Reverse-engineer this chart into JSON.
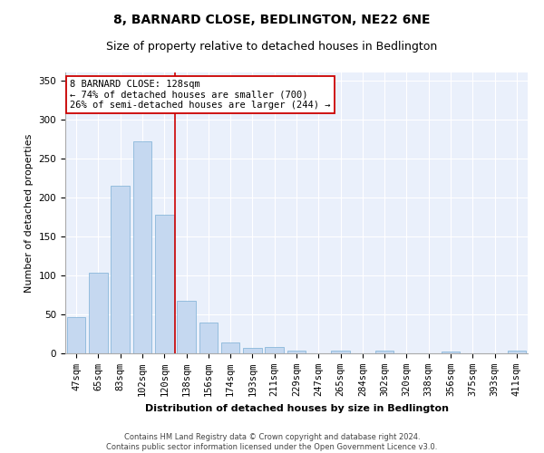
{
  "title": "8, BARNARD CLOSE, BEDLINGTON, NE22 6NE",
  "subtitle": "Size of property relative to detached houses in Bedlington",
  "xlabel": "Distribution of detached houses by size in Bedlington",
  "ylabel": "Number of detached properties",
  "categories": [
    "47sqm",
    "65sqm",
    "83sqm",
    "102sqm",
    "120sqm",
    "138sqm",
    "156sqm",
    "174sqm",
    "193sqm",
    "211sqm",
    "229sqm",
    "247sqm",
    "265sqm",
    "284sqm",
    "302sqm",
    "320sqm",
    "338sqm",
    "356sqm",
    "375sqm",
    "393sqm",
    "411sqm"
  ],
  "values": [
    47,
    103,
    215,
    272,
    178,
    67,
    40,
    14,
    7,
    8,
    3,
    0,
    3,
    0,
    3,
    0,
    0,
    2,
    0,
    0,
    3
  ],
  "bar_color": "#c5d8f0",
  "bar_edge_color": "#7aafd4",
  "vline_color": "#cc0000",
  "annotation_text": "8 BARNARD CLOSE: 128sqm\n← 74% of detached houses are smaller (700)\n26% of semi-detached houses are larger (244) →",
  "annotation_box_color": "#ffffff",
  "annotation_box_edge": "#cc0000",
  "ylim": [
    0,
    360
  ],
  "yticks": [
    0,
    50,
    100,
    150,
    200,
    250,
    300,
    350
  ],
  "footer": "Contains HM Land Registry data © Crown copyright and database right 2024.\nContains public sector information licensed under the Open Government Licence v3.0.",
  "bg_color": "#eaf0fb",
  "title_fontsize": 10,
  "subtitle_fontsize": 9,
  "axis_label_fontsize": 8,
  "tick_fontsize": 7.5,
  "annotation_fontsize": 7.5,
  "footer_fontsize": 6
}
